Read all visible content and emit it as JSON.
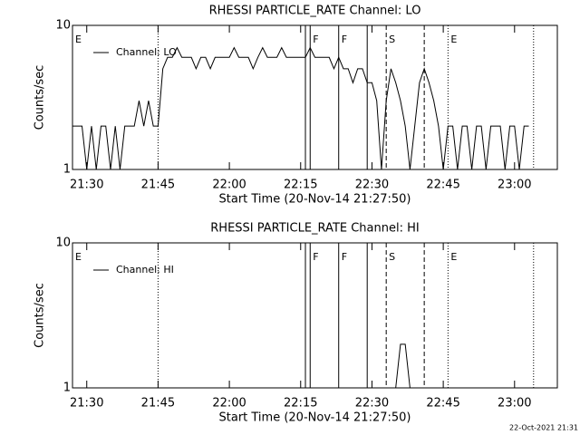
{
  "chart_data": [
    {
      "type": "line",
      "title": "RHESSI PARTICLE_RATE Channel: LO",
      "xlabel": "Start Time (20-Nov-14 21:27:50)",
      "ylabel": "Counts/sec",
      "xlim": [
        "21:27",
        "23:09"
      ],
      "xticks": [
        "21:30",
        "21:45",
        "22:00",
        "22:15",
        "22:30",
        "22:45",
        "23:00"
      ],
      "ylim": [
        1,
        10
      ],
      "yticks": [
        1,
        10
      ],
      "ylog": true,
      "legend": "upper left",
      "vlines": [
        {
          "x": "21:45",
          "style": "dotted"
        },
        {
          "x": "22:16",
          "style": "solid"
        },
        {
          "x": "22:17",
          "style": "solid"
        },
        {
          "x": "22:23",
          "style": "solid"
        },
        {
          "x": "22:29",
          "style": "solid"
        },
        {
          "x": "22:33",
          "style": "dashed"
        },
        {
          "x": "22:41",
          "style": "dashed"
        },
        {
          "x": "22:46",
          "style": "dotted"
        },
        {
          "x": "23:04",
          "style": "dotted"
        }
      ],
      "annotations": [
        {
          "label": "E",
          "x": "21:27"
        },
        {
          "label": "F",
          "x": "22:17"
        },
        {
          "label": "F",
          "x": "22:23"
        },
        {
          "label": "S",
          "x": "22:33"
        },
        {
          "label": "E",
          "x": "22:46"
        }
      ],
      "series": [
        {
          "name": "Channel: LO",
          "color": "#000000",
          "x": [
            "21:27",
            "21:28",
            "21:29",
            "21:30",
            "21:31",
            "21:32",
            "21:33",
            "21:34",
            "21:35",
            "21:36",
            "21:37",
            "21:38",
            "21:39",
            "21:40",
            "21:41",
            "21:42",
            "21:43",
            "21:44",
            "21:45",
            "21:46",
            "21:47",
            "21:48",
            "21:49",
            "21:50",
            "21:51",
            "21:52",
            "21:53",
            "21:54",
            "21:55",
            "21:56",
            "21:57",
            "21:58",
            "21:59",
            "22:00",
            "22:01",
            "22:02",
            "22:03",
            "22:04",
            "22:05",
            "22:06",
            "22:07",
            "22:08",
            "22:09",
            "22:10",
            "22:11",
            "22:12",
            "22:13",
            "22:14",
            "22:15",
            "22:16",
            "22:17",
            "22:18",
            "22:19",
            "22:20",
            "22:21",
            "22:22",
            "22:23",
            "22:24",
            "22:25",
            "22:26",
            "22:27",
            "22:28",
            "22:29",
            "22:30",
            "22:31",
            "22:32",
            "22:33",
            "22:34",
            "22:35",
            "22:36",
            "22:37",
            "22:38",
            "22:39",
            "22:40",
            "22:41",
            "22:42",
            "22:43",
            "22:44",
            "22:45",
            "22:46",
            "22:47",
            "22:48",
            "22:49",
            "22:50",
            "22:51",
            "22:52",
            "22:53",
            "22:54",
            "22:55",
            "22:56",
            "22:57",
            "22:58",
            "22:59",
            "23:00",
            "23:01",
            "23:02",
            "23:03"
          ],
          "values": [
            2,
            2,
            2,
            1,
            2,
            1,
            2,
            2,
            1,
            2,
            1,
            2,
            2,
            2,
            3,
            2,
            3,
            2,
            2,
            5,
            6,
            6,
            7,
            6,
            6,
            6,
            5,
            6,
            6,
            5,
            6,
            6,
            6,
            6,
            7,
            6,
            6,
            6,
            5,
            6,
            7,
            6,
            6,
            6,
            7,
            6,
            6,
            6,
            6,
            6,
            7,
            6,
            6,
            6,
            6,
            5,
            6,
            5,
            5,
            4,
            5,
            5,
            4,
            4,
            3,
            1,
            3,
            5,
            4,
            3,
            2,
            1,
            2,
            4,
            5,
            4,
            3,
            2,
            1,
            2,
            2,
            1,
            2,
            2,
            1,
            2,
            2,
            1,
            2,
            2,
            2,
            1,
            2,
            2,
            1,
            2,
            2
          ]
        }
      ]
    },
    {
      "type": "line",
      "title": "RHESSI PARTICLE_RATE Channel: HI",
      "xlabel": "Start Time (20-Nov-14 21:27:50)",
      "ylabel": "Counts/sec",
      "xlim": [
        "21:27",
        "23:09"
      ],
      "xticks": [
        "21:30",
        "21:45",
        "22:00",
        "22:15",
        "22:30",
        "22:45",
        "23:00"
      ],
      "ylim": [
        1,
        10
      ],
      "yticks": [
        1,
        10
      ],
      "ylog": true,
      "legend": "upper left",
      "vlines": [
        {
          "x": "21:45",
          "style": "dotted"
        },
        {
          "x": "22:16",
          "style": "solid"
        },
        {
          "x": "22:17",
          "style": "solid"
        },
        {
          "x": "22:23",
          "style": "solid"
        },
        {
          "x": "22:29",
          "style": "solid"
        },
        {
          "x": "22:33",
          "style": "dashed"
        },
        {
          "x": "22:41",
          "style": "dashed"
        },
        {
          "x": "22:46",
          "style": "dotted"
        },
        {
          "x": "23:04",
          "style": "dotted"
        }
      ],
      "annotations": [
        {
          "label": "E",
          "x": "21:27"
        },
        {
          "label": "F",
          "x": "22:17"
        },
        {
          "label": "F",
          "x": "22:23"
        },
        {
          "label": "S",
          "x": "22:33"
        },
        {
          "label": "E",
          "x": "22:46"
        }
      ],
      "series": [
        {
          "name": "Channel: HI",
          "color": "#000000",
          "x": [
            "22:35",
            "22:36",
            "22:37",
            "22:38"
          ],
          "values": [
            1,
            2,
            2,
            1
          ]
        }
      ]
    }
  ],
  "footer": "22-Oct-2021 21:31"
}
